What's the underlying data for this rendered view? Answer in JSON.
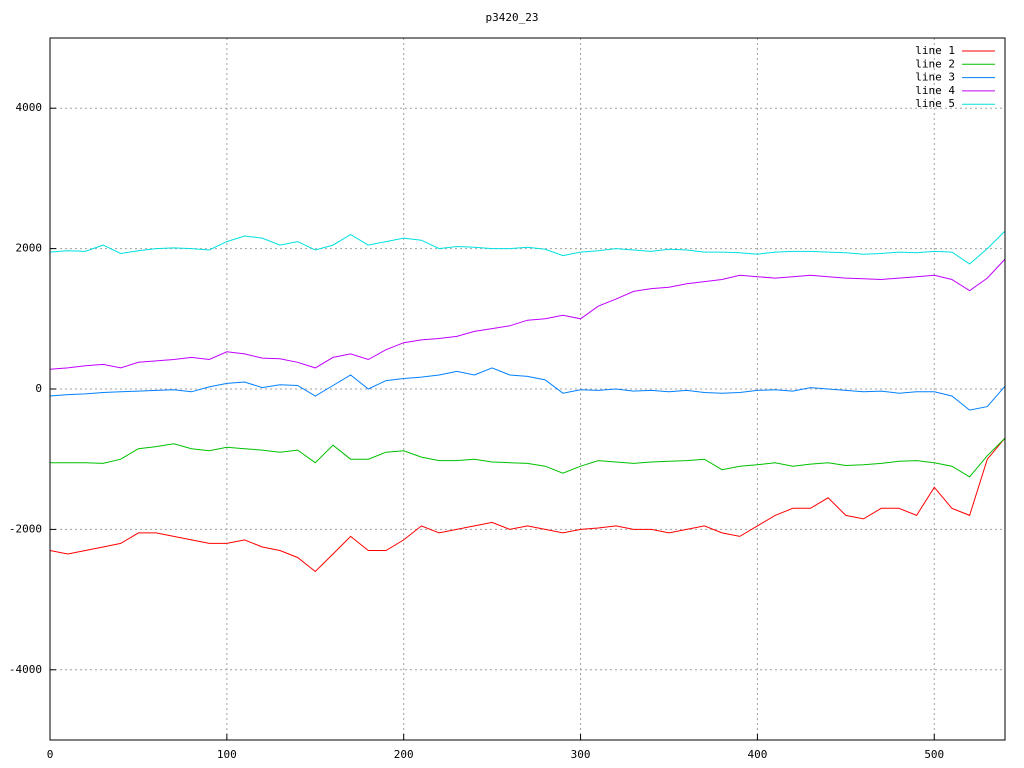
{
  "chart_data": {
    "type": "line",
    "title": "p3420_23",
    "x": [
      0,
      10,
      20,
      30,
      40,
      50,
      60,
      70,
      80,
      90,
      100,
      110,
      120,
      130,
      140,
      150,
      160,
      170,
      180,
      190,
      200,
      210,
      220,
      230,
      240,
      250,
      260,
      270,
      280,
      290,
      300,
      310,
      320,
      330,
      340,
      350,
      360,
      370,
      380,
      390,
      400,
      410,
      420,
      430,
      440,
      450,
      460,
      470,
      480,
      490,
      500,
      510,
      520,
      530,
      540
    ],
    "series": [
      {
        "name": "line 1",
        "color": "#ff0000",
        "values": [
          -2300,
          -2350,
          -2300,
          -2250,
          -2200,
          -2050,
          -2050,
          -2100,
          -2150,
          -2200,
          -2200,
          -2150,
          -2250,
          -2300,
          -2400,
          -2600,
          -2350,
          -2100,
          -2300,
          -2300,
          -2150,
          -1950,
          -2050,
          -2000,
          -1950,
          -1900,
          -2000,
          -1950,
          -2000,
          -2050,
          -2000,
          -1980,
          -1950,
          -2000,
          -2000,
          -2050,
          -2000,
          -1950,
          -2050,
          -2100,
          -1950,
          -1800,
          -1700,
          -1700,
          -1550,
          -1800,
          -1850,
          -1700,
          -1700,
          -1800,
          -1400,
          -1700,
          -1800,
          -1000,
          -700
        ]
      },
      {
        "name": "line 2",
        "color": "#00c000",
        "values": [
          -1050,
          -1050,
          -1050,
          -1060,
          -1000,
          -850,
          -820,
          -780,
          -850,
          -880,
          -830,
          -850,
          -870,
          -900,
          -870,
          -1050,
          -800,
          -1000,
          -1000,
          -900,
          -880,
          -970,
          -1020,
          -1020,
          -1000,
          -1040,
          -1050,
          -1060,
          -1100,
          -1200,
          -1100,
          -1020,
          -1040,
          -1060,
          -1040,
          -1030,
          -1020,
          -1000,
          -1150,
          -1100,
          -1080,
          -1050,
          -1100,
          -1070,
          -1050,
          -1090,
          -1080,
          -1060,
          -1030,
          -1020,
          -1050,
          -1100,
          -1250,
          -950,
          -700
        ]
      },
      {
        "name": "line 3",
        "color": "#0080ff",
        "values": [
          -100,
          -80,
          -70,
          -50,
          -40,
          -30,
          -20,
          -10,
          -40,
          30,
          80,
          100,
          20,
          60,
          50,
          -100,
          50,
          200,
          0,
          120,
          150,
          170,
          200,
          250,
          200,
          300,
          200,
          180,
          130,
          -60,
          -10,
          -20,
          0,
          -30,
          -20,
          -40,
          -20,
          -50,
          -60,
          -50,
          -20,
          -10,
          -30,
          20,
          0,
          -20,
          -40,
          -30,
          -60,
          -40,
          -40,
          -100,
          -300,
          -250,
          40
        ]
      },
      {
        "name": "line 4",
        "color": "#c000ff",
        "values": [
          280,
          300,
          330,
          350,
          300,
          380,
          400,
          420,
          450,
          420,
          530,
          500,
          440,
          430,
          380,
          300,
          450,
          500,
          420,
          560,
          660,
          700,
          720,
          750,
          820,
          860,
          900,
          980,
          1000,
          1050,
          1000,
          1180,
          1280,
          1390,
          1430,
          1450,
          1500,
          1530,
          1560,
          1620,
          1600,
          1580,
          1600,
          1620,
          1600,
          1580,
          1570,
          1560,
          1580,
          1600,
          1620,
          1560,
          1400,
          1580,
          1850
        ]
      },
      {
        "name": "line 5",
        "color": "#00e0e0",
        "values": [
          1950,
          1970,
          1960,
          2050,
          1930,
          1970,
          2000,
          2010,
          2000,
          1980,
          2100,
          2180,
          2150,
          2050,
          2100,
          1980,
          2050,
          2200,
          2050,
          2100,
          2150,
          2120,
          2000,
          2030,
          2020,
          2000,
          2000,
          2020,
          1990,
          1900,
          1950,
          1970,
          2000,
          1980,
          1960,
          1990,
          1980,
          1950,
          1950,
          1940,
          1920,
          1950,
          1960,
          1960,
          1950,
          1940,
          1920,
          1930,
          1950,
          1940,
          1960,
          1950,
          1780,
          2000,
          2250
        ]
      }
    ],
    "xlim": [
      0,
      540
    ],
    "ylim": [
      -5000,
      5000
    ],
    "xticks": [
      0,
      100,
      200,
      300,
      400,
      500
    ],
    "yticks": [
      -4000,
      -2000,
      0,
      2000,
      4000
    ],
    "grid": true,
    "legend": "top-right"
  }
}
